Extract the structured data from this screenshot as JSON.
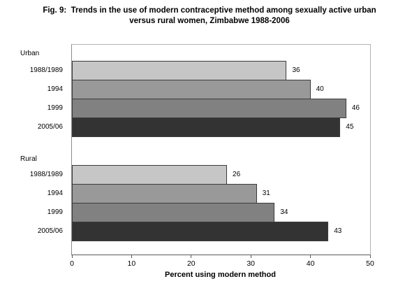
{
  "figure": {
    "title_line1": "Fig. 9:  Trends in the use of modern contraceptive method among sexually active urban",
    "title_line2": "versus rural women, Zimbabwe 1988-2006"
  },
  "chart_data": {
    "type": "bar",
    "orientation": "horizontal",
    "title": "Fig. 9: Trends in the use of modern contraceptive method among sexually active urban versus rural women, Zimbabwe 1988-2006",
    "xlabel": "Percent using modern method",
    "xlim": [
      0,
      50
    ],
    "x_ticks": [
      0,
      10,
      20,
      30,
      40,
      50
    ],
    "grid": false,
    "legend": "none",
    "groups": [
      {
        "label": "Urban",
        "categories": [
          "1988/1989",
          "1994",
          "1999",
          "2005/06"
        ],
        "values": [
          36,
          40,
          46,
          45
        ]
      },
      {
        "label": "Rural",
        "categories": [
          "1988/1989",
          "1994",
          "1999",
          "2005/06"
        ],
        "values": [
          26,
          31,
          34,
          43
        ]
      }
    ],
    "bar_colors": [
      "#c6c6c6",
      "#999999",
      "#818181",
      "#333333"
    ],
    "bar_border_color": "#3c3c3c",
    "axis_color": "#595959",
    "plot_border_color": "#b3b3b3",
    "background_color": "#ffffff"
  }
}
